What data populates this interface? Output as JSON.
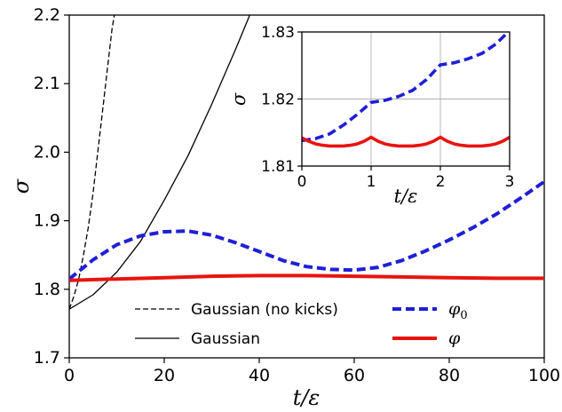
{
  "chart_data": [
    {
      "type": "line",
      "xlabel": "t/ε",
      "ylabel": "σ",
      "xlim": [
        0,
        100
      ],
      "ylim": [
        1.7,
        2.2
      ],
      "xticks": [
        0,
        20,
        40,
        60,
        80,
        100
      ],
      "yticks": [
        1.7,
        1.8,
        1.9,
        2.0,
        2.1,
        2.2
      ],
      "xtick_labels": [
        "0",
        "20",
        "40",
        "60",
        "80",
        "100"
      ],
      "ytick_labels": [
        "1.7",
        "1.8",
        "1.9",
        "2.0",
        "2.1",
        "2.2"
      ],
      "legend_position": "bottom",
      "series": [
        {
          "name": "Gaussian (no kicks)",
          "color": "#000000",
          "style": "dashed",
          "x": [
            0,
            1,
            2,
            3,
            4,
            5,
            6,
            7,
            8,
            9,
            9.5
          ],
          "y": [
            1.771,
            1.79,
            1.815,
            1.85,
            1.89,
            1.94,
            2.0,
            2.06,
            2.12,
            2.18,
            2.2
          ]
        },
        {
          "name": "Gaussian",
          "color": "#000000",
          "style": "solid",
          "x": [
            0,
            5,
            10,
            15,
            20,
            25,
            30,
            35,
            38
          ],
          "y": [
            1.771,
            1.792,
            1.825,
            1.87,
            1.93,
            1.995,
            2.07,
            2.15,
            2.2
          ]
        },
        {
          "name": "φ0",
          "color": "#1f1fd6",
          "style": "dashed",
          "x": [
            0,
            5,
            10,
            15,
            20,
            25,
            30,
            35,
            40,
            45,
            50,
            55,
            60,
            65,
            70,
            75,
            80,
            85,
            90,
            95,
            100
          ],
          "y": [
            1.815,
            1.843,
            1.865,
            1.878,
            1.884,
            1.885,
            1.879,
            1.868,
            1.855,
            1.842,
            1.833,
            1.829,
            1.828,
            1.832,
            1.842,
            1.856,
            1.872,
            1.89,
            1.91,
            1.933,
            1.957
          ]
        },
        {
          "name": "φ",
          "color": "#e8140f",
          "style": "solid",
          "x": [
            0,
            10,
            20,
            30,
            40,
            50,
            60,
            70,
            80,
            90,
            100
          ],
          "y": [
            1.813,
            1.815,
            1.817,
            1.819,
            1.82,
            1.82,
            1.819,
            1.818,
            1.817,
            1.816,
            1.816
          ]
        }
      ]
    },
    {
      "type": "line",
      "xlabel": "t/ε",
      "ylabel": "σ",
      "xlim": [
        0,
        3
      ],
      "ylim": [
        1.81,
        1.83
      ],
      "xticks": [
        0,
        1,
        2,
        3
      ],
      "yticks": [
        1.81,
        1.82,
        1.83
      ],
      "xtick_labels": [
        "0",
        "1",
        "2",
        "3"
      ],
      "ytick_labels": [
        "1.81",
        "1.82",
        "1.83"
      ],
      "grid": true,
      "series": [
        {
          "color": "#1f1fd6",
          "style": "dashed",
          "x": [
            0,
            0.2,
            0.4,
            0.6,
            0.8,
            1.0,
            1.2,
            1.4,
            1.6,
            1.8,
            2.0,
            2.2,
            2.4,
            2.6,
            2.8,
            3.0
          ],
          "y": [
            1.8138,
            1.8141,
            1.8148,
            1.8161,
            1.8177,
            1.8195,
            1.8198,
            1.8204,
            1.8213,
            1.8229,
            1.8251,
            1.8254,
            1.826,
            1.8268,
            1.8282,
            1.8302
          ]
        },
        {
          "color": "#e8140f",
          "style": "solid",
          "x": [
            0,
            0.1,
            0.2,
            0.3,
            0.4,
            0.5,
            0.6,
            0.7,
            0.8,
            0.9,
            1.0,
            1.1,
            1.2,
            1.3,
            1.4,
            1.5,
            1.6,
            1.7,
            1.8,
            1.9,
            2.0,
            2.1,
            2.2,
            2.3,
            2.4,
            2.5,
            2.6,
            2.7,
            2.8,
            2.9,
            3.0
          ],
          "y": [
            1.8142,
            1.8137,
            1.8133,
            1.8131,
            1.813,
            1.813,
            1.813,
            1.8131,
            1.8133,
            1.8137,
            1.8143,
            1.8137,
            1.8133,
            1.8131,
            1.813,
            1.813,
            1.813,
            1.8131,
            1.8133,
            1.8137,
            1.8143,
            1.8137,
            1.8133,
            1.8131,
            1.813,
            1.813,
            1.813,
            1.8131,
            1.8133,
            1.8137,
            1.8143
          ]
        }
      ]
    }
  ],
  "legend": {
    "left": [
      {
        "label": "Gaussian (no kicks)",
        "style": "dashed",
        "color": "#000000"
      },
      {
        "label": "Gaussian",
        "style": "solid",
        "color": "#000000"
      }
    ],
    "right": [
      {
        "symbol": "φ",
        "subscript": "0",
        "style": "dashed",
        "color": "#1f1fd6"
      },
      {
        "symbol": "φ",
        "subscript": "",
        "style": "solid",
        "color": "#e8140f"
      }
    ]
  }
}
